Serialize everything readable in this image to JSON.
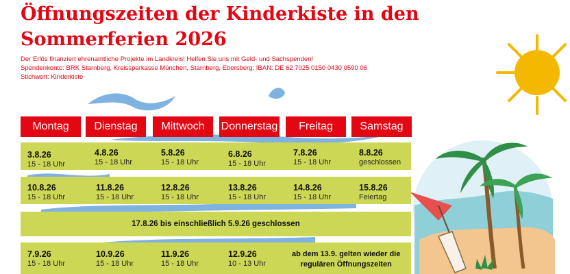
{
  "title": {
    "line1": "Öffnungszeiten der Kinderkiste in den",
    "line2": "Sommerferien 2026"
  },
  "info": {
    "line1": "Der Erlös finanziert ehrenamtliche Projekte im Landkreis! Helfen Sie uns mit Geld- und Sachspenden!",
    "line2": "Spendenkonto: BRK Starnberg, Kreissparkasse München, Starnberg, Ebersberg; IBAN: DE 62 7025 0150 0430 0590 06",
    "line3": "Stichwort: Kinderkiste"
  },
  "days": [
    "Montag",
    "Dienstag",
    "Mittwoch",
    "Donnerstag",
    "Freitag",
    "Samstag"
  ],
  "week1": [
    {
      "date": "3.8.26",
      "time": "15 - 18 Uhr"
    },
    {
      "date": "4.8.26",
      "time": "15 - 18 Uhr"
    },
    {
      "date": "5.8.26",
      "time": "15 - 18 Uhr"
    },
    {
      "date": "6.8.26",
      "time": "15 - 18 Uhr"
    },
    {
      "date": "7.8.26",
      "time": "15 - 18 Uhr"
    },
    {
      "date": "8.8.26",
      "time": "geschlossen"
    }
  ],
  "week2": [
    {
      "date": "10.8.26",
      "time": "15 - 18 Uhr"
    },
    {
      "date": "11.8.26",
      "time": "15 - 18 Uhr"
    },
    {
      "date": "12.8.26",
      "time": "15 - 18 Uhr"
    },
    {
      "date": "13.8.26",
      "time": "15 - 18 Uhr"
    },
    {
      "date": "14.8.26",
      "time": "15 - 18 Uhr"
    },
    {
      "date": "15.8.26",
      "time": "Feiertag"
    }
  ],
  "closed_period": "17.8.26 bis einschließlich 5.9.26 geschlossen",
  "week4": [
    {
      "date": "7.9.26",
      "time": "15 - 18 Uhr"
    },
    {
      "date": "10.9.26",
      "time": "15 - 18 Uhr"
    },
    {
      "date": "11.9.26",
      "time": "15 - 18 Uhr"
    },
    {
      "date": "12.9.26",
      "time": "10 - 13 Uhr"
    }
  ],
  "note": {
    "line1": "ab dem 13.9. gelten wieder die",
    "line2": "regulären Öffnungszeiten"
  },
  "colors": {
    "accent": "#e30613",
    "band": "#ccd855",
    "wave": "#6fa8dc",
    "sun": "#f5b800"
  }
}
